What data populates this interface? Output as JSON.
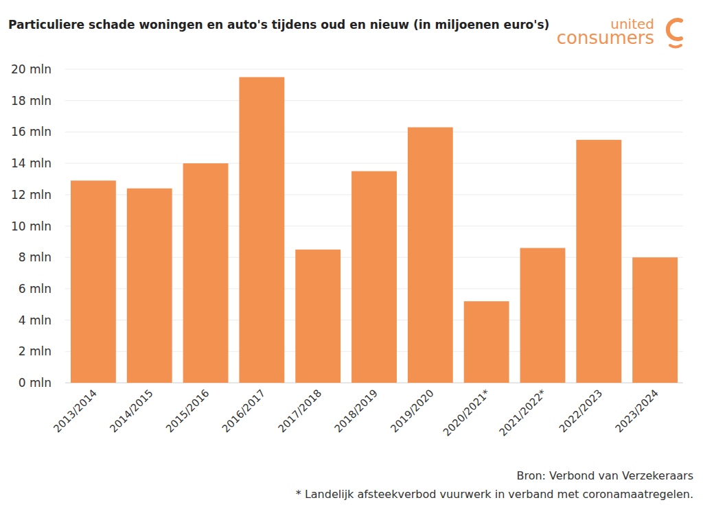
{
  "chart_data": {
    "type": "bar",
    "title": "Particuliere schade woningen en auto's tijdens oud en nieuw (in miljoenen euro's)",
    "logo": [
      "united",
      "consumers"
    ],
    "categories": [
      "2013/2014",
      "2014/2015",
      "2015/2016",
      "2016/2017",
      "2017/2018",
      "2018/2019",
      "2019/2020",
      "2020/2021*",
      "2021/2022*",
      "2022/2023",
      "2023/2024"
    ],
    "values": [
      12.9,
      12.4,
      14.0,
      19.5,
      8.5,
      13.5,
      16.3,
      5.2,
      8.6,
      15.5,
      8.0
    ],
    "color": "#f39150",
    "ylim": [
      0,
      20
    ],
    "yticks": [
      {
        "value": 0,
        "label": "0 mln"
      },
      {
        "value": 2,
        "label": "2 mln"
      },
      {
        "value": 4,
        "label": "4 mln"
      },
      {
        "value": 6,
        "label": "6 mln"
      },
      {
        "value": 8,
        "label": "8 mln"
      },
      {
        "value": 10,
        "label": "10 mln"
      },
      {
        "value": 12,
        "label": "12 mln"
      },
      {
        "value": 14,
        "label": "14 mln"
      },
      {
        "value": 16,
        "label": "16 mln"
      },
      {
        "value": 18,
        "label": "18 mln"
      },
      {
        "value": 20,
        "label": "20 mln"
      }
    ],
    "grid": true,
    "source": "Bron: Verbond van Verzekeraars",
    "footnote": "* Landelijk afsteekverbod vuurwerk in verband met coronamaatregelen."
  }
}
